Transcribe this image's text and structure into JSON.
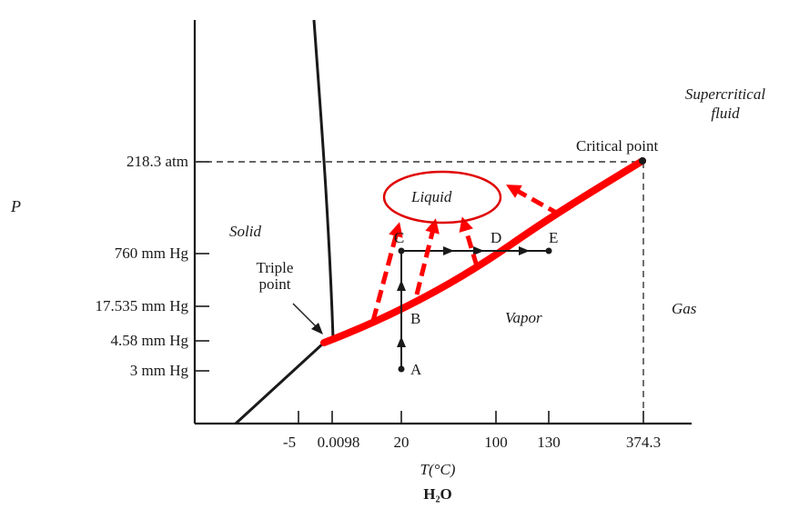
{
  "diagram": {
    "axes": {
      "y_label": "P",
      "x_label": "T(°C)",
      "caption": "H₂O"
    },
    "y_ticks": [
      "218.3 atm",
      "760 mm Hg",
      "17.535 mm Hg",
      "4.58 mm Hg",
      "3 mm Hg"
    ],
    "x_ticks": [
      "-5",
      "0.0098",
      "20",
      "100",
      "130",
      "374.3"
    ],
    "regions": {
      "solid": "Solid",
      "liquid": "Liquid",
      "vapor": "Vapor",
      "gas": "Gas",
      "supercritical_line1": "Supercritical",
      "supercritical_line2": "fluid"
    },
    "points": {
      "critical": "Critical point",
      "triple_line1": "Triple",
      "triple_line2": "point",
      "A": "A",
      "B": "B",
      "C": "C",
      "D": "D",
      "E": "E"
    },
    "colors": {
      "curve": "#ff0000",
      "lines": "#1a1a1a",
      "liquid_ellipse": "#e00000"
    }
  }
}
